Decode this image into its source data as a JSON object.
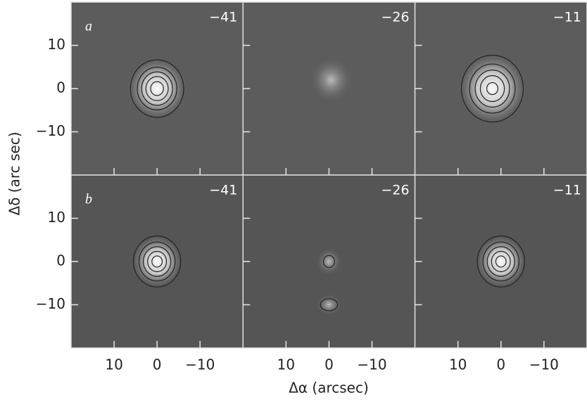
{
  "figure": {
    "y_label": "Δδ (arc sec)",
    "x_label": "Δα (arcsec)",
    "xlim": [
      20,
      -20
    ],
    "ylim": [
      -20,
      20
    ],
    "xticks": [
      10,
      0,
      {
        "value": -10,
        "label": "−10"
      }
    ],
    "yticks": [
      10,
      0,
      {
        "value": -10,
        "label": "−10"
      }
    ],
    "rows": [
      {
        "label": "a",
        "panels": [
          "−41",
          "−26",
          "−11"
        ]
      },
      {
        "label": "b",
        "panels": [
          "−41",
          "−26",
          "−11"
        ]
      }
    ]
  }
}
